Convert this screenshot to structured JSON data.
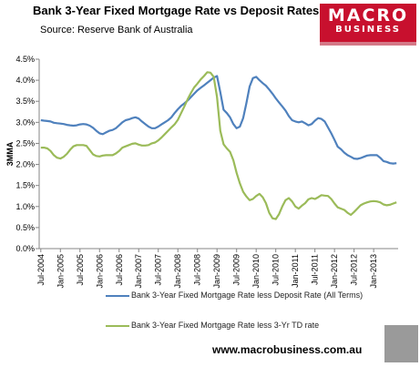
{
  "header": {
    "title": "Bank 3-Year Fixed Mortgage Rate vs Deposit Rates",
    "source": "Source: Reserve Bank of Australia",
    "logo_line1": "MACRO",
    "logo_line2": "BUSINESS",
    "url": "www.macrobusiness.com.au"
  },
  "chart_data": {
    "type": "line",
    "ylabel": "3MMA",
    "ylim": [
      0.0,
      4.5
    ],
    "y_ticks": [
      "0.0%",
      "0.5%",
      "1.0%",
      "1.5%",
      "2.0%",
      "2.5%",
      "3.0%",
      "3.5%",
      "4.0%",
      "4.5%"
    ],
    "x_ticks": [
      "Jul-2004",
      "Jan-2005",
      "Jul-2005",
      "Jan-2006",
      "Jul-2006",
      "Jan-2007",
      "Jul-2007",
      "Jan-2008",
      "Jul-2008",
      "Jan-2009",
      "Jul-2009",
      "Jan-2010",
      "Jul-2010",
      "Jan-2011",
      "Jul-2011",
      "Jan-2012",
      "Jul-2012",
      "Jan-2013"
    ],
    "x_start": "2004-07",
    "legend_position": "bottom",
    "series": [
      {
        "name": "Bank 3-Year Fixed Mortgage Rate less Deposit Rate (All Terms)",
        "color": "#4f81bd",
        "values": [
          3.05,
          3.04,
          3.03,
          3.02,
          2.99,
          2.98,
          2.97,
          2.96,
          2.94,
          2.93,
          2.92,
          2.93,
          2.95,
          2.96,
          2.95,
          2.92,
          2.87,
          2.8,
          2.74,
          2.72,
          2.76,
          2.8,
          2.82,
          2.86,
          2.93,
          3.0,
          3.05,
          3.07,
          3.1,
          3.12,
          3.09,
          3.02,
          2.96,
          2.9,
          2.86,
          2.86,
          2.9,
          2.95,
          3.0,
          3.05,
          3.12,
          3.22,
          3.31,
          3.39,
          3.45,
          3.52,
          3.6,
          3.68,
          3.76,
          3.82,
          3.88,
          3.94,
          4.0,
          4.06,
          4.1,
          3.72,
          3.3,
          3.22,
          3.12,
          2.96,
          2.86,
          2.9,
          3.1,
          3.45,
          3.85,
          4.05,
          4.08,
          4.0,
          3.93,
          3.87,
          3.78,
          3.68,
          3.57,
          3.47,
          3.38,
          3.28,
          3.15,
          3.05,
          3.02,
          3.0,
          3.02,
          2.98,
          2.93,
          2.96,
          3.04,
          3.1,
          3.08,
          3.02,
          2.88,
          2.74,
          2.58,
          2.42,
          2.36,
          2.28,
          2.22,
          2.18,
          2.14,
          2.13,
          2.15,
          2.18,
          2.21,
          2.22,
          2.22,
          2.22,
          2.16,
          2.08,
          2.06,
          2.03,
          2.02,
          2.03
        ]
      },
      {
        "name": "Bank 3-Year Fixed Mortgage Rate less 3-Yr TD rate",
        "color": "#9bbb59",
        "values": [
          2.4,
          2.4,
          2.38,
          2.32,
          2.22,
          2.16,
          2.14,
          2.18,
          2.25,
          2.35,
          2.43,
          2.46,
          2.46,
          2.46,
          2.44,
          2.34,
          2.24,
          2.2,
          2.19,
          2.21,
          2.22,
          2.22,
          2.22,
          2.26,
          2.32,
          2.4,
          2.43,
          2.46,
          2.49,
          2.5,
          2.47,
          2.45,
          2.45,
          2.46,
          2.5,
          2.52,
          2.57,
          2.64,
          2.72,
          2.8,
          2.88,
          2.95,
          3.06,
          3.22,
          3.38,
          3.55,
          3.7,
          3.83,
          3.92,
          4.02,
          4.1,
          4.19,
          4.18,
          4.08,
          3.6,
          2.8,
          2.48,
          2.38,
          2.3,
          2.1,
          1.8,
          1.55,
          1.35,
          1.24,
          1.15,
          1.18,
          1.25,
          1.3,
          1.22,
          1.08,
          0.85,
          0.72,
          0.7,
          0.82,
          1.0,
          1.15,
          1.2,
          1.12,
          1.0,
          0.95,
          1.02,
          1.08,
          1.17,
          1.2,
          1.18,
          1.22,
          1.27,
          1.26,
          1.25,
          1.18,
          1.07,
          0.98,
          0.95,
          0.92,
          0.85,
          0.8,
          0.87,
          0.95,
          1.03,
          1.07,
          1.1,
          1.12,
          1.13,
          1.12,
          1.1,
          1.05,
          1.03,
          1.04,
          1.07,
          1.1
        ]
      }
    ]
  }
}
